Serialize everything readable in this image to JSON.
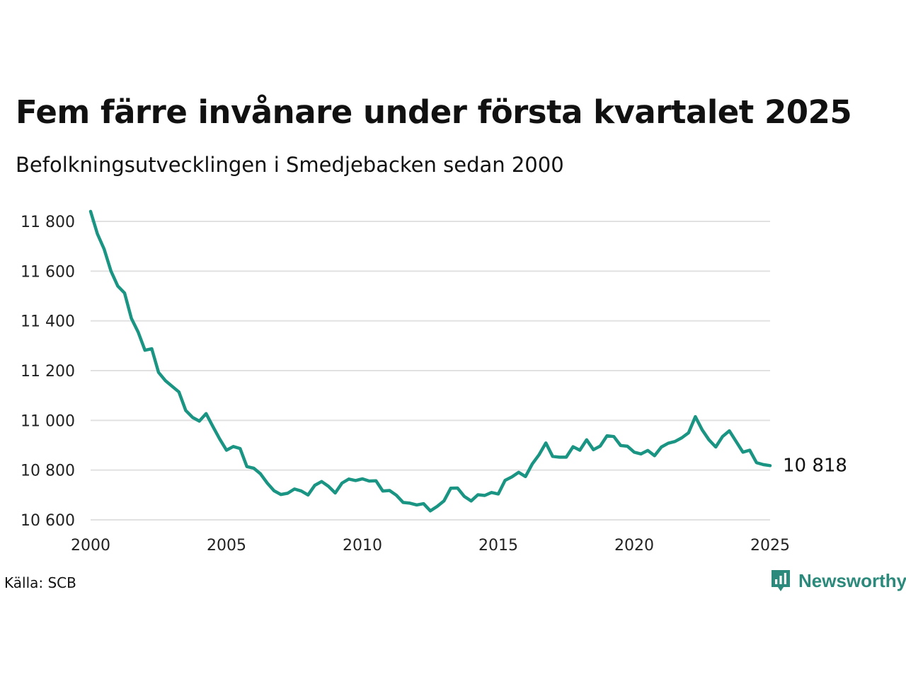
{
  "title": "Fem färre invånare under första kvartalet 2025",
  "subtitle": "Befolkningsutvecklingen i Smedjebacken sedan 2000",
  "source": "Källa: SCB",
  "brand": {
    "name": "Newsworthy",
    "logo_icon": "bar-chart-speech-bubble-icon",
    "color": "#2b8a7b"
  },
  "chart_data": {
    "type": "line",
    "title": "Fem färre invånare under första kvartalet 2025",
    "subtitle": "Befolkningsutvecklingen i Smedjebacken sedan 2000",
    "xlabel": "",
    "ylabel": "",
    "xlim": [
      2000,
      2025
    ],
    "ylim": [
      10600,
      11840
    ],
    "x_ticks": [
      {
        "value": 2000,
        "label": "2000"
      },
      {
        "value": 2005,
        "label": "2005"
      },
      {
        "value": 2010,
        "label": "2010"
      },
      {
        "value": 2015,
        "label": "2015"
      },
      {
        "value": 2020,
        "label": "2020"
      },
      {
        "value": 2025,
        "label": "2025"
      }
    ],
    "y_ticks": [
      {
        "value": 10600,
        "label": "10 600"
      },
      {
        "value": 10800,
        "label": "10 800"
      },
      {
        "value": 11000,
        "label": "11 000"
      },
      {
        "value": 11200,
        "label": "11 200"
      },
      {
        "value": 11400,
        "label": "11 400"
      },
      {
        "value": 11600,
        "label": "11 600"
      },
      {
        "value": 11800,
        "label": "11 800"
      }
    ],
    "grid": "horizontal",
    "line_color": "#1a9483",
    "end_label": "10 818",
    "series": [
      {
        "x": [
          2000.0,
          2000.25,
          2000.5,
          2000.75,
          2001.0,
          2001.25,
          2001.5,
          2001.75,
          2002.0,
          2002.25,
          2002.5,
          2002.75,
          2003.0,
          2003.25,
          2003.5,
          2003.75,
          2004.0,
          2004.25,
          2004.5,
          2004.75,
          2005.0,
          2005.25,
          2005.5,
          2005.75,
          2006.0,
          2006.25,
          2006.5,
          2006.75,
          2007.0,
          2007.25,
          2007.5,
          2007.75,
          2008.0,
          2008.25,
          2008.5,
          2008.75,
          2009.0,
          2009.25,
          2009.5,
          2009.75,
          2010.0,
          2010.25,
          2010.5,
          2010.75,
          2011.0,
          2011.25,
          2011.5,
          2011.75,
          2012.0,
          2012.25,
          2012.5,
          2012.75,
          2013.0,
          2013.25,
          2013.5,
          2013.75,
          2014.0,
          2014.25,
          2014.5,
          2014.75,
          2015.0,
          2015.25,
          2015.5,
          2015.75,
          2016.0,
          2016.25,
          2016.5,
          2016.75,
          2017.0,
          2017.25,
          2017.5,
          2017.75,
          2018.0,
          2018.25,
          2018.5,
          2018.75,
          2019.0,
          2019.25,
          2019.5,
          2019.75,
          2020.0,
          2020.25,
          2020.5,
          2020.75,
          2021.0,
          2021.25,
          2021.5,
          2021.75,
          2022.0,
          2022.25,
          2022.5,
          2022.75,
          2023.0,
          2023.25,
          2023.5,
          2023.75,
          2024.0,
          2024.25,
          2024.5,
          2024.75,
          2025.0
        ],
        "y": [
          11840,
          11750,
          11688,
          11600,
          11540,
          11512,
          11410,
          11355,
          11282,
          11288,
          11193,
          11160,
          11137,
          11114,
          11040,
          11012,
          10997,
          11027,
          10975,
          10925,
          10880,
          10895,
          10887,
          10814,
          10808,
          10785,
          10748,
          10717,
          10702,
          10707,
          10724,
          10716,
          10700,
          10739,
          10754,
          10735,
          10708,
          10748,
          10764,
          10758,
          10765,
          10756,
          10757,
          10716,
          10718,
          10699,
          10670,
          10667,
          10660,
          10665,
          10636,
          10654,
          10676,
          10727,
          10728,
          10694,
          10676,
          10701,
          10698,
          10710,
          10704,
          10759,
          10773,
          10791,
          10774,
          10825,
          10862,
          10909,
          10855,
          10852,
          10852,
          10894,
          10880,
          10922,
          10882,
          10897,
          10938,
          10935,
          10899,
          10896,
          10872,
          10865,
          10879,
          10858,
          10893,
          10908,
          10915,
          10930,
          10950,
          11015,
          10962,
          10922,
          10893,
          10935,
          10958,
          10915,
          10872,
          10880,
          10830,
          10822,
          10818
        ]
      }
    ]
  }
}
